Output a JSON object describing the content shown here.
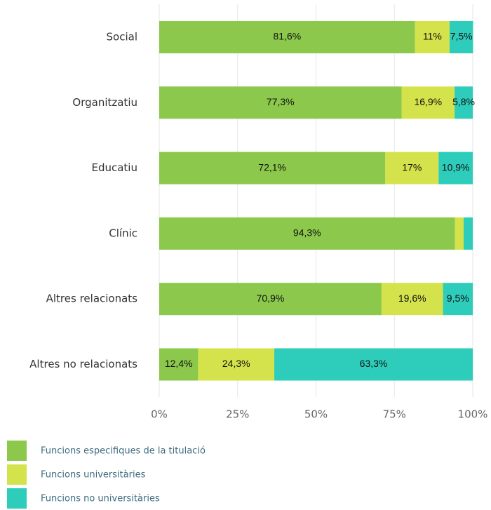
{
  "chart_data": {
    "type": "bar",
    "orientation": "horizontal",
    "stacked": true,
    "categories": [
      "Social",
      "Organitzatiu",
      "Educatiu",
      "Clínic",
      "Altres relacionats",
      "Altres no relacionats"
    ],
    "series": [
      {
        "name": "Funcions especifiques de la titulació",
        "color": "#8cc84b",
        "values": [
          81.6,
          77.3,
          72.1,
          94.3,
          70.9,
          12.4
        ],
        "value_labels": [
          "81,6%",
          "77,3%",
          "72,1%",
          "94,3%",
          "70,9%",
          "12,4%"
        ]
      },
      {
        "name": "Funcions universitàries",
        "color": "#d4e34b",
        "values": [
          11,
          16.9,
          17,
          2.8,
          19.6,
          24.3
        ],
        "value_labels": [
          "11%",
          "16,9%",
          "17%",
          null,
          "19,6%",
          "24,3%"
        ]
      },
      {
        "name": "Funcions no universitàries",
        "color": "#2ecdbb",
        "values": [
          7.5,
          5.8,
          10.9,
          2.9,
          9.5,
          63.3
        ],
        "value_labels": [
          "7,5%",
          "5,8%",
          "10,9%",
          null,
          "9,5%",
          "63,3%"
        ]
      }
    ],
    "xlim": [
      0,
      100
    ],
    "xticks": [
      {
        "value": 0,
        "label": "0%"
      },
      {
        "value": 25,
        "label": "25%"
      },
      {
        "value": 50,
        "label": "50%"
      },
      {
        "value": 75,
        "label": "75%"
      },
      {
        "value": 100,
        "label": "100%"
      }
    ],
    "grid": true,
    "legend": "bottom"
  }
}
